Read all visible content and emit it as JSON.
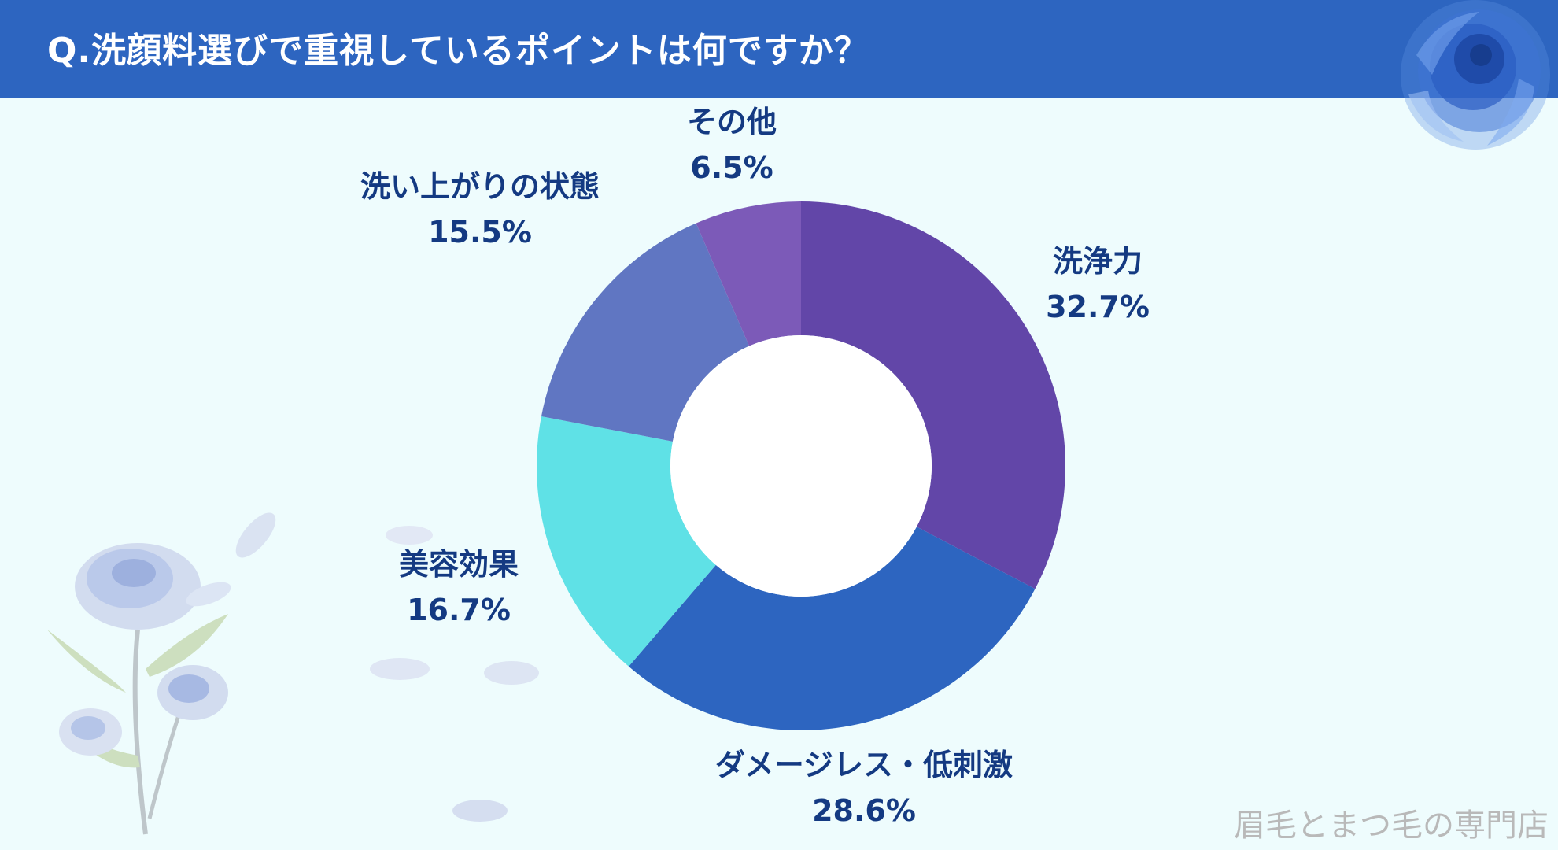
{
  "header": {
    "title": "Q.洗顔料選びで重視しているポイントは何ですか？"
  },
  "watermark": "眉毛とまつ毛の専門店",
  "colors": {
    "header": "#2d65c0",
    "background": "#eefcfd",
    "label": "#143a82"
  },
  "chart_data": {
    "type": "pie",
    "variant": "donut",
    "title": "Q.洗顔料選びで重視しているポイントは何ですか？",
    "categories": [
      "洗浄力",
      "ダメージレス・低刺激",
      "美容効果",
      "洗い上がりの状態",
      "その他"
    ],
    "values": [
      32.7,
      28.6,
      16.7,
      15.5,
      6.5
    ],
    "value_labels": [
      "32.7%",
      "28.6%",
      "16.7%",
      "15.5%",
      "6.5%"
    ],
    "colors": [
      "#6246a8",
      "#2d65c0",
      "#5fe1e6",
      "#6076c2",
      "#7c5ab8"
    ],
    "start_angle": "12 o'clock, clockwise",
    "legend": "none (labels beside slices)"
  }
}
